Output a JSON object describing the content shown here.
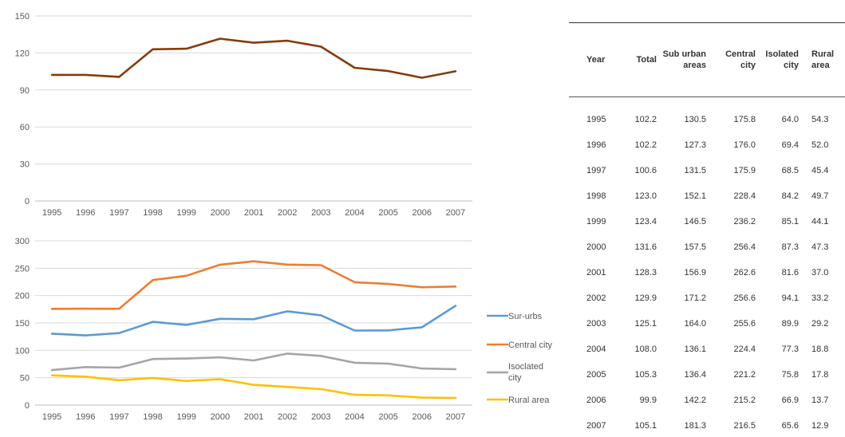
{
  "chart_data": [
    {
      "type": "line",
      "categories": [
        "1995",
        "1996",
        "1997",
        "1998",
        "1999",
        "2000",
        "2001",
        "2002",
        "2003",
        "2004",
        "2005",
        "2006",
        "2007"
      ],
      "series": [
        {
          "values": [
            102.2,
            102.2,
            100.6,
            123.0,
            123.4,
            131.6,
            128.3,
            129.9,
            125.1,
            108.0,
            105.3,
            99.9,
            105.1
          ]
        }
      ],
      "ylim": [
        0,
        150
      ],
      "yticks": [
        "0",
        "30",
        "60",
        "90",
        "120",
        "150"
      ],
      "grid": true,
      "colors": [
        "#843c0c"
      ]
    },
    {
      "type": "line",
      "categories": [
        "1995",
        "1996",
        "1997",
        "1998",
        "1999",
        "2000",
        "2001",
        "2002",
        "2003",
        "2004",
        "2005",
        "2006",
        "2007"
      ],
      "series": [
        {
          "name": "Sur-urbs",
          "values": [
            130.5,
            127.3,
            131.5,
            152.1,
            146.5,
            157.5,
            156.9,
            171.2,
            164.0,
            136.1,
            136.4,
            142.2,
            181.3
          ]
        },
        {
          "name": "Central city",
          "values": [
            175.8,
            176.0,
            175.9,
            228.4,
            236.2,
            256.4,
            262.6,
            256.6,
            255.6,
            224.4,
            221.2,
            215.2,
            216.5
          ]
        },
        {
          "name": "Isoclated city",
          "values": [
            64.0,
            69.4,
            68.5,
            84.2,
            85.1,
            87.3,
            81.6,
            94.1,
            89.9,
            77.3,
            75.8,
            66.9,
            65.6
          ]
        },
        {
          "name": "Rural area",
          "values": [
            54.3,
            52.0,
            45.4,
            49.7,
            44.1,
            47.3,
            37.0,
            33.2,
            29.2,
            18.8,
            17.8,
            13.7,
            12.9
          ]
        }
      ],
      "ylim": [
        0,
        300
      ],
      "yticks": [
        "0",
        "50",
        "100",
        "150",
        "200",
        "250",
        "300"
      ],
      "grid": true,
      "legend": "right",
      "colors": [
        "#5b9bd5",
        "#ed7d31",
        "#a5a5a5",
        "#ffc000"
      ]
    },
    {
      "type": "table",
      "columns": [
        "Year",
        "Total",
        "Sub urban areas",
        "Central city",
        "Isolated city",
        "Rural area"
      ],
      "rows": [
        [
          "1995",
          "102.2",
          "130.5",
          "175.8",
          "64.0",
          "54.3"
        ],
        [
          "1996",
          "102.2",
          "127.3",
          "176.0",
          "69.4",
          "52.0"
        ],
        [
          "1997",
          "100.6",
          "131.5",
          "175.9",
          "68.5",
          "45.4"
        ],
        [
          "1998",
          "123.0",
          "152.1",
          "228.4",
          "84.2",
          "49.7"
        ],
        [
          "1999",
          "123.4",
          "146.5",
          "236.2",
          "85.1",
          "44.1"
        ],
        [
          "2000",
          "131.6",
          "157.5",
          "256.4",
          "87.3",
          "47.3"
        ],
        [
          "2001",
          "128.3",
          "156.9",
          "262.6",
          "81.6",
          "37.0"
        ],
        [
          "2002",
          "129.9",
          "171.2",
          "256.6",
          "94.1",
          "33.2"
        ],
        [
          "2003",
          "125.1",
          "164.0",
          "255.6",
          "89.9",
          "29.2"
        ],
        [
          "2004",
          "108.0",
          "136.1",
          "224.4",
          "77.3",
          "18.8"
        ],
        [
          "2005",
          "105.3",
          "136.4",
          "221.2",
          "75.8",
          "17.8"
        ],
        [
          "2006",
          "99.9",
          "142.2",
          "215.2",
          "66.9",
          "13.7"
        ],
        [
          "2007",
          "105.1",
          "181.3",
          "216.5",
          "65.6",
          "12.9"
        ]
      ]
    }
  ]
}
